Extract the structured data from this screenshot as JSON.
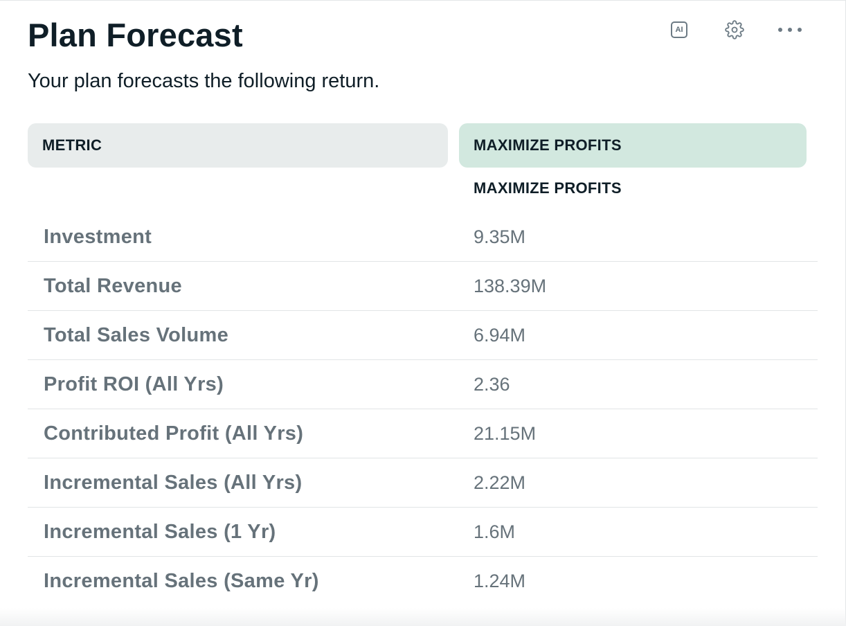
{
  "card": {
    "title": "Plan Forecast",
    "subtitle": "Your plan forecasts the following return."
  },
  "toolbar": {
    "ai_label": "AI",
    "icons": [
      "ai-icon",
      "gear-icon",
      "more-horizontal-icon"
    ]
  },
  "table": {
    "header_metric": "METRIC",
    "header_plan": "MAXIMIZE PROFITS",
    "subheader_plan": "MAXIMIZE PROFITS",
    "rows": [
      {
        "metric": "Investment",
        "value": "9.35M"
      },
      {
        "metric": "Total Revenue",
        "value": "138.39M"
      },
      {
        "metric": "Total Sales Volume",
        "value": "6.94M"
      },
      {
        "metric": "Profit ROI (All Yrs)",
        "value": "2.36"
      },
      {
        "metric": "Contributed Profit (All Yrs)",
        "value": "21.15M"
      },
      {
        "metric": "Incremental Sales (All Yrs)",
        "value": "2.22M"
      },
      {
        "metric": "Incremental Sales (1 Yr)",
        "value": "1.6M"
      },
      {
        "metric": "Incremental Sales (Same Yr)",
        "value": "1.24M"
      }
    ]
  },
  "colors": {
    "header_metric_bg": "#e8ecec",
    "header_plan_bg": "#d2e8df",
    "title_text": "#0f1e27",
    "row_text": "#66727a"
  }
}
